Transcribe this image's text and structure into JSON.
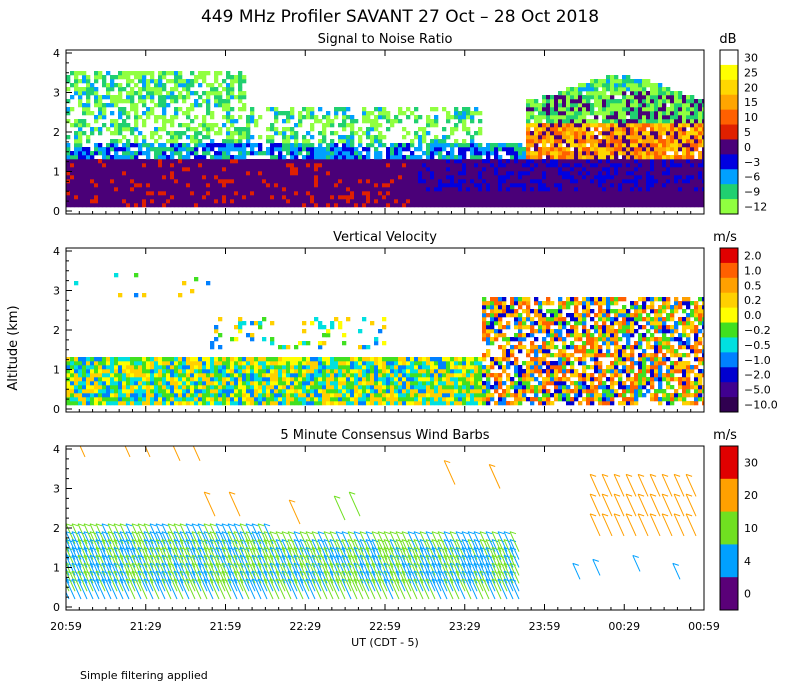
{
  "figure": {
    "title": "449 MHz Profiler SAVANT 27 Oct – 28 Oct 2018",
    "ylabel": "Altitude (km)",
    "xlabel": "UT  (CDT - 5)",
    "footnote": "Simple filtering applied",
    "x_ticks": [
      "20:59",
      "21:29",
      "21:59",
      "22:29",
      "22:59",
      "23:29",
      "23:59",
      "00:29",
      "00:59"
    ],
    "y_ticks": [
      "0",
      "1",
      "2",
      "3",
      "4"
    ]
  },
  "chart_data": [
    {
      "type": "heatmap",
      "title": "Signal to Noise Ratio",
      "unit": "dB",
      "colorbar": {
        "labels": [
          "30",
          "25",
          "20",
          "15",
          "10",
          "5",
          "0",
          "−3",
          "−6",
          "−9",
          "−12"
        ],
        "colors": [
          "#ffffff",
          "#ffff00",
          "#ffd700",
          "#ffa500",
          "#ff6000",
          "#e02000",
          "#4a0078",
          "#0000e0",
          "#00a0ff",
          "#20d070",
          "#90ff40"
        ]
      },
      "ylim": [
        0,
        4
      ],
      "xrange": [
        "20:59",
        "00:59"
      ]
    },
    {
      "type": "heatmap",
      "title": "Vertical Velocity",
      "unit": "m/s",
      "colorbar": {
        "labels": [
          "2.0",
          "1.0",
          "0.5",
          "0.2",
          "0.0",
          "−0.2",
          "−0.5",
          "−1.0",
          "−2.0",
          "−5.0",
          "−10.0"
        ],
        "colors": [
          "#e00000",
          "#ff6000",
          "#ffa000",
          "#ffd000",
          "#ffff00",
          "#40e020",
          "#00e0e0",
          "#0080ff",
          "#0000d0",
          "#400090",
          "#300050"
        ]
      },
      "ylim": [
        0,
        4
      ],
      "xrange": [
        "20:59",
        "00:59"
      ]
    },
    {
      "type": "scatter",
      "title": "5 Minute Consensus Wind Barbs",
      "unit": "m/s",
      "colorbar": {
        "labels": [
          "30",
          "20",
          "10",
          "4",
          "0"
        ],
        "colors": [
          "#e00000",
          "#ffa000",
          "#70e020",
          "#00a0ff",
          "#5a0078"
        ]
      },
      "ylim": [
        0,
        4
      ],
      "xrange": [
        "20:59",
        "00:59"
      ]
    }
  ]
}
